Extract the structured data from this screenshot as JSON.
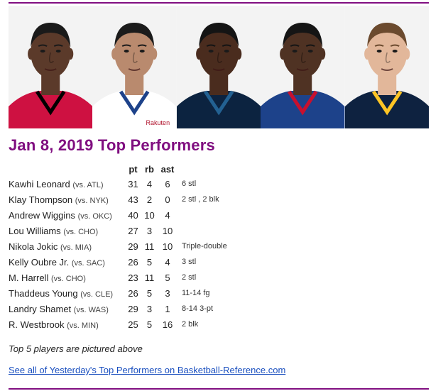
{
  "colors": {
    "accent": "#800e80",
    "link": "#1a4fbf",
    "text": "#222222"
  },
  "photo_strip": [
    {
      "name": "player-photo-1",
      "jersey": "#ce1141",
      "trim": "#000000",
      "skin": "#5b3a2a",
      "hair": "#1a1a1a"
    },
    {
      "name": "player-photo-2",
      "jersey": "#ffffff",
      "trim": "#1d428a",
      "skin": "#b98a6e",
      "hair": "#1b1b1b",
      "logo": "Rakuten"
    },
    {
      "name": "player-photo-3",
      "jersey": "#0c2340",
      "trim": "#236192",
      "skin": "#4a2c1e",
      "hair": "#141414"
    },
    {
      "name": "player-photo-4",
      "jersey": "#1d428a",
      "trim": "#c8102e",
      "skin": "#4f3223",
      "hair": "#151515"
    },
    {
      "name": "player-photo-5",
      "jersey": "#0e2240",
      "trim": "#fec524",
      "skin": "#e2b79a",
      "hair": "#6b4a2e"
    }
  ],
  "title": "Jan 8, 2019 Top Performers",
  "table": {
    "headers": {
      "pt": "pt",
      "rb": "rb",
      "ast": "ast"
    },
    "rows": [
      {
        "player": "Kawhi Leonard",
        "opp": "(vs. ATL)",
        "pt": "31",
        "rb": "4",
        "ast": "6",
        "note": "6 stl"
      },
      {
        "player": "Klay Thompson",
        "opp": "(vs. NYK)",
        "pt": "43",
        "rb": "2",
        "ast": "0",
        "note": "2 stl , 2 blk"
      },
      {
        "player": "Andrew Wiggins",
        "opp": "(vs. OKC)",
        "pt": "40",
        "rb": "10",
        "ast": "4",
        "note": ""
      },
      {
        "player": "Lou Williams",
        "opp": "(vs. CHO)",
        "pt": "27",
        "rb": "3",
        "ast": "10",
        "note": ""
      },
      {
        "player": "Nikola Jokic",
        "opp": "(vs. MIA)",
        "pt": "29",
        "rb": "11",
        "ast": "10",
        "note": "Triple-double"
      },
      {
        "player": "Kelly Oubre Jr.",
        "opp": "(vs. SAC)",
        "pt": "26",
        "rb": "5",
        "ast": "4",
        "note": "3 stl"
      },
      {
        "player": "M. Harrell",
        "opp": "(vs. CHO)",
        "pt": "23",
        "rb": "11",
        "ast": "5",
        "note": "2 stl"
      },
      {
        "player": "Thaddeus Young",
        "opp": "(vs. CLE)",
        "pt": "26",
        "rb": "5",
        "ast": "3",
        "note": "11-14 fg"
      },
      {
        "player": "Landry Shamet",
        "opp": "(vs. WAS)",
        "pt": "29",
        "rb": "3",
        "ast": "1",
        "note": "8-14 3-pt"
      },
      {
        "player": "R. Westbrook",
        "opp": "(vs. MIN)",
        "pt": "25",
        "rb": "5",
        "ast": "16",
        "note": "2 blk"
      }
    ]
  },
  "pictured_note": "Top 5 players are pictured above",
  "link_text": "See all of Yesterday's Top Performers on Basketball-Reference.com"
}
